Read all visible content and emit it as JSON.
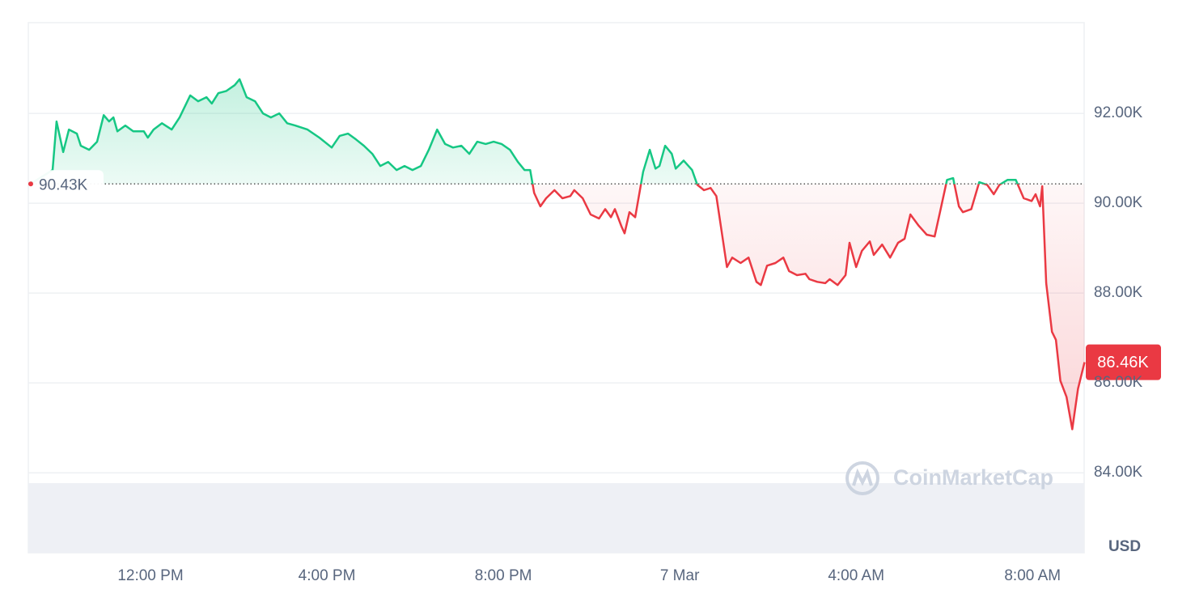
{
  "chart_data": {
    "type": "line",
    "x": [
      9.28,
      9.78,
      9.87,
      10.02,
      10.15,
      10.33,
      10.42,
      10.61,
      10.79,
      10.94,
      11.06,
      11.16,
      11.25,
      11.43,
      11.61,
      11.85,
      11.94,
      12.07,
      12.26,
      12.48,
      12.66,
      12.9,
      13.08,
      13.27,
      13.39,
      13.54,
      13.72,
      13.91,
      14.02,
      14.18,
      14.37,
      14.55,
      14.73,
      14.92,
      15.1,
      15.28,
      15.56,
      15.83,
      16.11,
      16.29,
      16.48,
      16.66,
      16.84,
      17.03,
      17.21,
      17.39,
      17.58,
      17.76,
      17.94,
      18.13,
      18.31,
      18.5,
      18.68,
      18.86,
      19.05,
      19.23,
      19.41,
      19.6,
      19.78,
      19.96,
      20.15,
      20.33,
      20.48,
      20.61,
      20.7,
      20.84,
      20.97,
      21.16,
      21.34,
      21.52,
      21.61,
      21.8,
      21.98,
      22.17,
      22.31,
      22.44,
      22.53,
      22.68,
      22.75,
      22.86,
      22.99,
      23.17,
      23.32,
      23.45,
      23.54,
      23.67,
      23.82,
      23.91,
      24.09,
      24.28,
      24.4,
      24.55,
      24.7,
      24.83,
      24.92,
      25.07,
      25.19,
      25.38,
      25.56,
      25.74,
      25.84,
      25.98,
      26.17,
      26.35,
      26.48,
      26.66,
      26.85,
      26.94,
      27.12,
      27.3,
      27.4,
      27.58,
      27.76,
      27.85,
      28.0,
      28.13,
      28.31,
      28.4,
      28.59,
      28.77,
      28.95,
      29.1,
      29.23,
      29.41,
      29.6,
      29.78,
      29.91,
      30.06,
      30.2,
      30.33,
      30.42,
      30.61,
      30.79,
      30.97,
      31.12,
      31.25,
      31.43,
      31.62,
      31.8,
      31.98,
      32.07,
      32.17,
      32.22,
      32.31,
      32.44,
      32.53,
      32.63,
      32.77,
      32.9,
      33.03,
      33.18
    ],
    "values": [
      90.43,
      90.74,
      91.82,
      91.14,
      91.64,
      91.55,
      91.28,
      91.19,
      91.37,
      91.96,
      91.82,
      91.91,
      91.6,
      91.73,
      91.6,
      91.6,
      91.46,
      91.64,
      91.78,
      91.64,
      91.91,
      92.4,
      92.27,
      92.36,
      92.22,
      92.45,
      92.5,
      92.63,
      92.76,
      92.36,
      92.27,
      92.0,
      91.91,
      92.0,
      91.78,
      91.73,
      91.64,
      91.46,
      91.24,
      91.5,
      91.55,
      91.42,
      91.28,
      91.1,
      90.83,
      90.92,
      90.74,
      90.83,
      90.74,
      90.83,
      91.19,
      91.64,
      91.32,
      91.24,
      91.28,
      91.1,
      91.37,
      91.32,
      91.37,
      91.32,
      91.19,
      90.92,
      90.74,
      90.74,
      90.23,
      89.93,
      90.11,
      90.29,
      90.11,
      90.16,
      90.29,
      90.11,
      89.75,
      89.66,
      89.87,
      89.69,
      89.87,
      89.48,
      89.33,
      89.8,
      89.69,
      90.7,
      91.19,
      90.77,
      90.83,
      91.28,
      91.1,
      90.77,
      90.95,
      90.74,
      90.41,
      90.29,
      90.34,
      90.16,
      89.57,
      88.58,
      88.79,
      88.67,
      88.79,
      88.25,
      88.18,
      88.61,
      88.67,
      88.79,
      88.49,
      88.4,
      88.43,
      88.31,
      88.25,
      88.22,
      88.31,
      88.18,
      88.4,
      89.12,
      88.58,
      88.94,
      89.15,
      88.85,
      89.08,
      88.79,
      89.12,
      89.21,
      89.75,
      89.51,
      89.3,
      89.26,
      89.84,
      90.52,
      90.56,
      89.93,
      89.8,
      89.87,
      90.47,
      90.41,
      90.2,
      90.41,
      90.52,
      90.52,
      90.11,
      90.05,
      90.2,
      89.93,
      90.38,
      88.22,
      87.14,
      86.96,
      86.05,
      85.69,
      84.97,
      85.87,
      86.46
    ],
    "baseline": {
      "value": 90.43,
      "label": "90.43K"
    },
    "price_tag": {
      "value": 86.46,
      "label": "86.46K"
    },
    "colors": {
      "above": "#16c784",
      "below": "#ea3943"
    },
    "xlim": [
      9.23,
      33.17
    ],
    "xticks": [
      {
        "value": 12,
        "label": "12:00 PM"
      },
      {
        "value": 16,
        "label": "4:00 PM"
      },
      {
        "value": 20,
        "label": "8:00 PM"
      },
      {
        "value": 24,
        "label": "7 Mar"
      },
      {
        "value": 28,
        "label": "4:00 AM"
      },
      {
        "value": 32,
        "label": "8:00 AM"
      }
    ],
    "ylim": [
      82.22,
      94.02
    ],
    "yticks": [
      {
        "value": 84,
        "label": "84.00K"
      },
      {
        "value": 86,
        "label": "86.00K"
      },
      {
        "value": 88,
        "label": "88.00K"
      },
      {
        "value": 90,
        "label": "90.00K"
      },
      {
        "value": 92,
        "label": "92.00K"
      }
    ],
    "grid": true,
    "y_unit": "USD",
    "watermark": "CoinMarketCap"
  }
}
